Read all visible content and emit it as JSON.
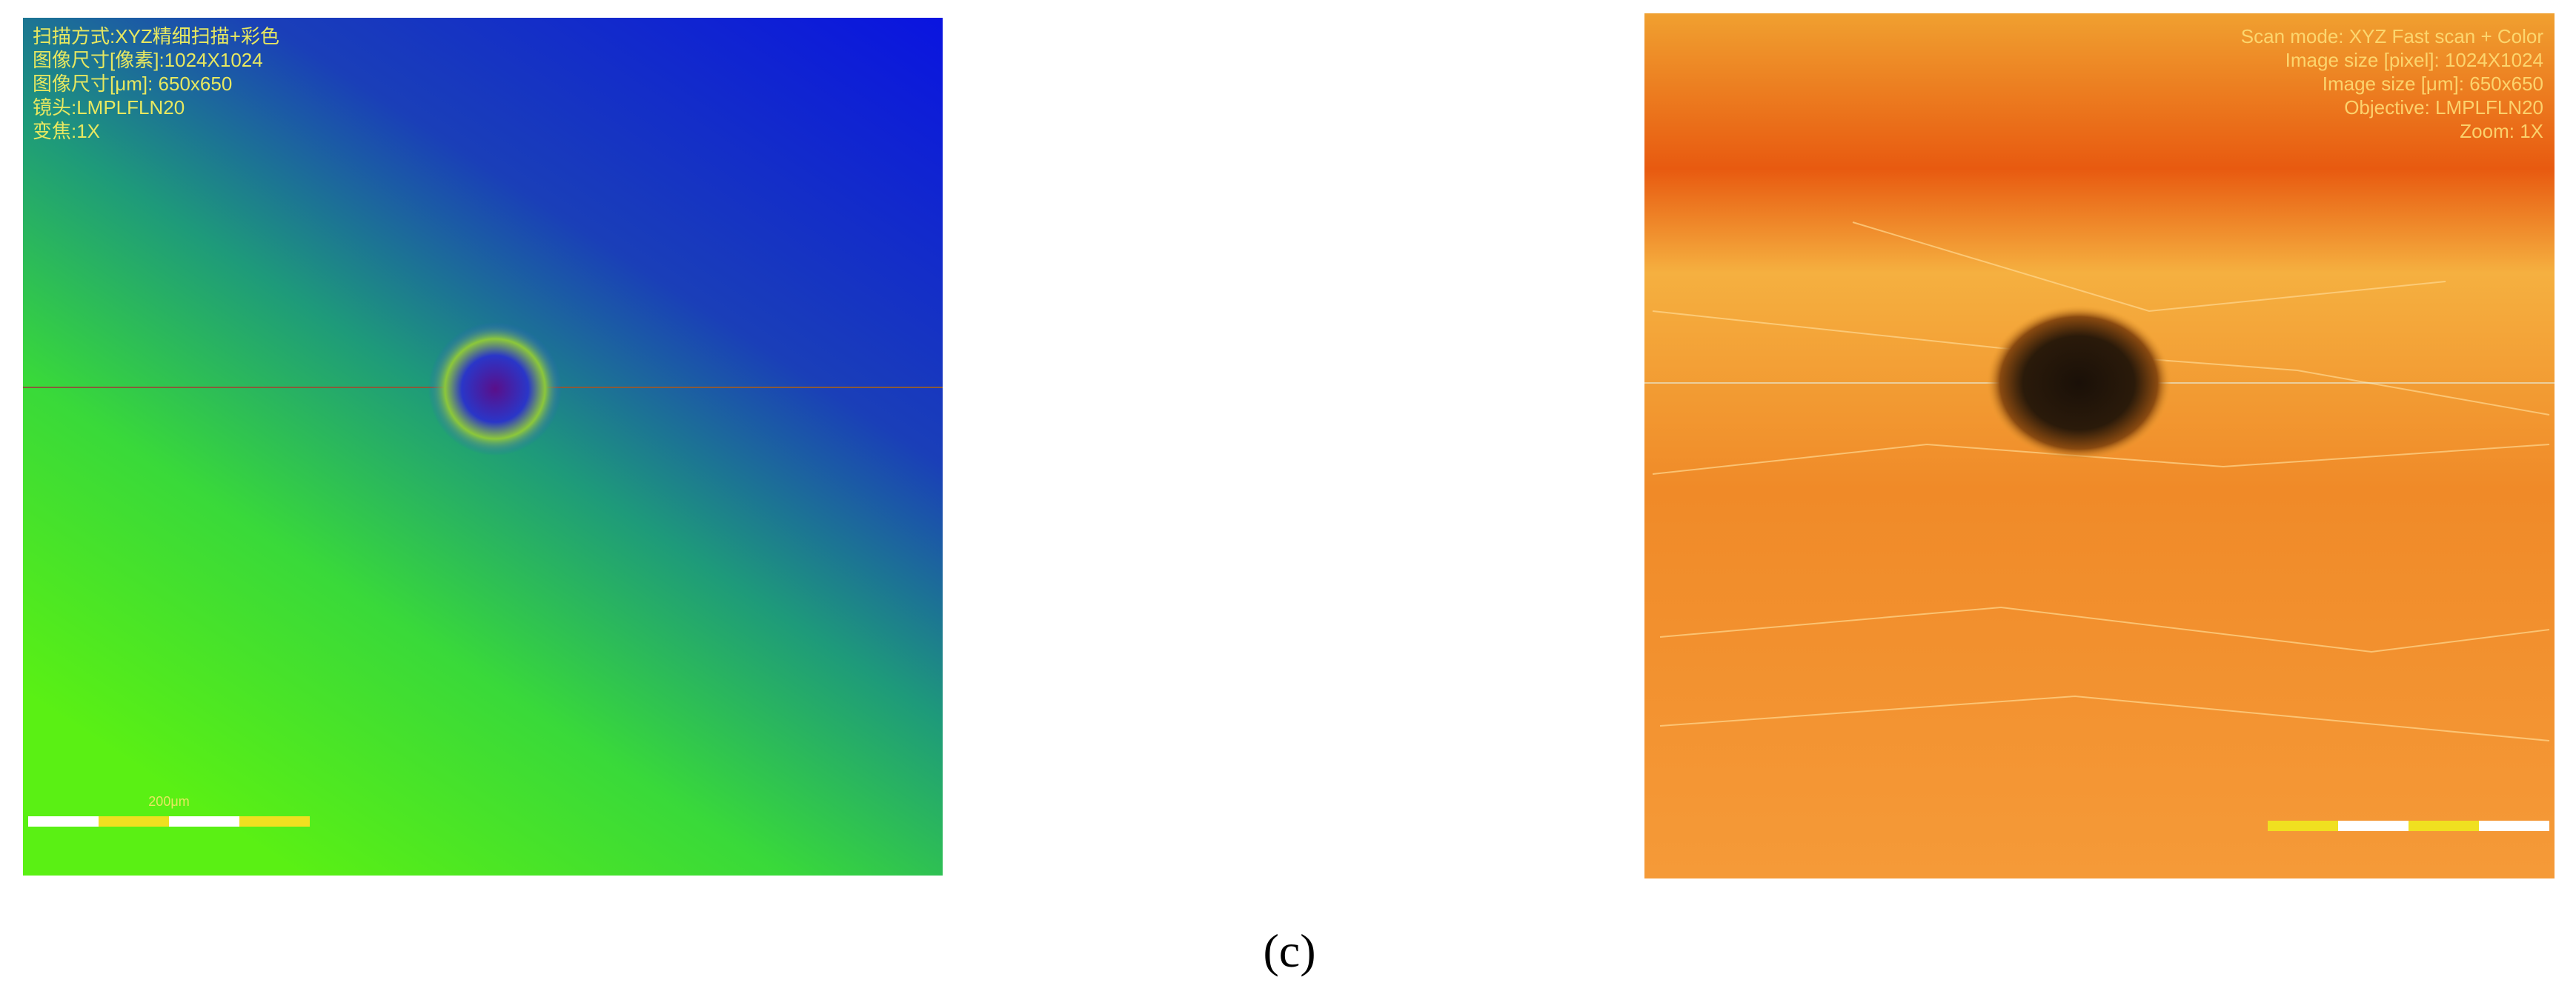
{
  "left_panel": {
    "overlay_lines": [
      "扫描方式:XYZ精细扫描+彩色",
      "图像尺寸[像素]:1024X1024",
      "图像尺寸[μm]: 650x650",
      "镜头:LMPLFLN20",
      "变焦:1X"
    ],
    "scale_label": "200μm"
  },
  "right_panel": {
    "overlay_lines": [
      "Scan mode: XYZ Fast scan + Color",
      "Image size [pixel]: 1024X1024",
      "Image size [μm]: 650x650",
      "Objective: LMPLFLN20",
      "Zoom: 1X"
    ]
  },
  "caption": "(c)"
}
